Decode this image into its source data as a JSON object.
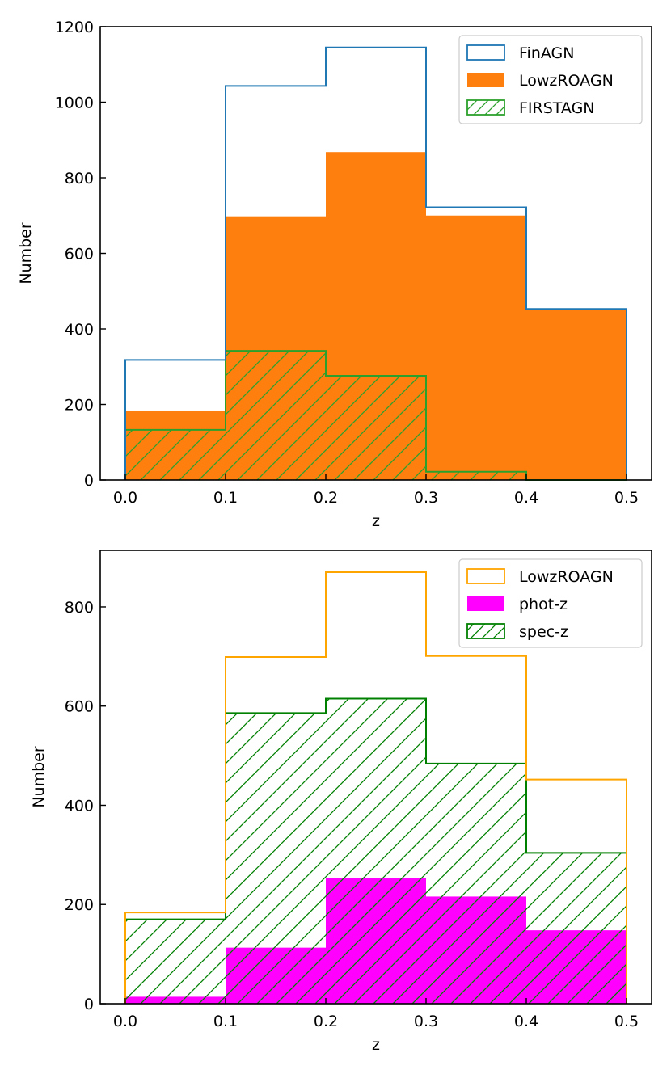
{
  "chart_data": [
    {
      "type": "histogram",
      "xlabel": "z",
      "ylabel": "Number",
      "xlim": [
        -0.025,
        0.525
      ],
      "ylim": [
        0,
        1200
      ],
      "xticks": [
        0.0,
        0.1,
        0.2,
        0.3,
        0.4,
        0.5
      ],
      "xtick_labels": [
        "0.0",
        "0.1",
        "0.2",
        "0.3",
        "0.4",
        "0.5"
      ],
      "yticks": [
        0,
        200,
        400,
        600,
        800,
        1000,
        1200
      ],
      "ytick_labels": [
        "0",
        "200",
        "400",
        "600",
        "800",
        "1000",
        "1200"
      ],
      "bins": [
        0.0,
        0.1,
        0.2,
        0.3,
        0.4,
        0.5
      ],
      "legend_position": "top-right",
      "series": [
        {
          "name": "FinAGN",
          "style": "step",
          "color": "#1f77b4",
          "values": [
            318,
            1043,
            1145,
            722,
            453
          ]
        },
        {
          "name": "LowzROAGN",
          "style": "filled",
          "color": "#ff7f0e",
          "values": [
            184,
            698,
            868,
            700,
            453
          ]
        },
        {
          "name": "FIRSTAGN",
          "style": "hatched",
          "color": "#2ca02c",
          "values": [
            133,
            342,
            276,
            22,
            0
          ]
        }
      ]
    },
    {
      "type": "histogram",
      "xlabel": "z",
      "ylabel": "Number",
      "xlim": [
        -0.025,
        0.525
      ],
      "ylim": [
        0,
        914
      ],
      "xticks": [
        0.0,
        0.1,
        0.2,
        0.3,
        0.4,
        0.5
      ],
      "xtick_labels": [
        "0.0",
        "0.1",
        "0.2",
        "0.3",
        "0.4",
        "0.5"
      ],
      "yticks": [
        0,
        200,
        400,
        600,
        800
      ],
      "ytick_labels": [
        "0",
        "200",
        "400",
        "600",
        "800"
      ],
      "bins": [
        0.0,
        0.1,
        0.2,
        0.3,
        0.4,
        0.5
      ],
      "legend_position": "top-right",
      "series": [
        {
          "name": "LowzROAGN",
          "style": "step",
          "color": "#ffa500",
          "values": [
            184,
            699,
            870,
            701,
            452
          ]
        },
        {
          "name": "phot-z",
          "style": "filled",
          "color": "#ff00ff",
          "values": [
            14,
            113,
            253,
            216,
            148
          ]
        },
        {
          "name": "spec-z",
          "style": "hatched",
          "color": "#008000",
          "values": [
            170,
            586,
            615,
            484,
            304
          ]
        }
      ]
    }
  ]
}
